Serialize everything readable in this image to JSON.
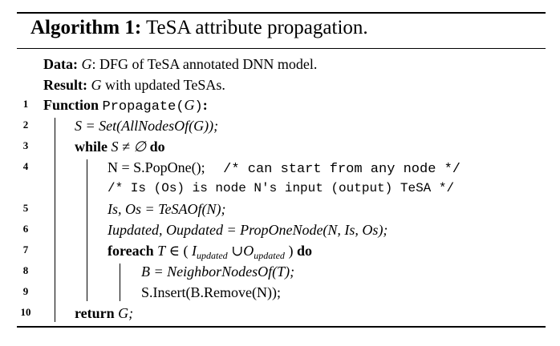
{
  "algorithm": {
    "label": "Algorithm 1:",
    "title": "TeSA attribute propagation."
  },
  "header": {
    "data_kw": "Data:",
    "data_text": ": DFG of TeSA annotated DNN model.",
    "result_kw": "Result:",
    "result_text": " with updated TeSAs."
  },
  "line_numbers": [
    "1",
    "2",
    "3",
    "4",
    "5",
    "6",
    "7",
    "8",
    "9",
    "10"
  ],
  "lines": {
    "l1": {
      "kw": "Function",
      "fn": "Propagate",
      "end": ":"
    },
    "l2": {
      "text": "S = Set(AllNodesOf(G));"
    },
    "l3": {
      "kw": "while",
      "cond": "S ≠ ∅",
      "kw2": "do"
    },
    "l4": {
      "stmt": "N = S.PopOne();",
      "comment": "/* can start from any node */"
    },
    "l4b": {
      "comment": "/* Is (Os) is node N's input (output) TeSA */"
    },
    "l5": {
      "text": "Is, Os = TeSAOf(N);"
    },
    "l6": {
      "text": "Iupdated, Oupdated = PropOneNode(N, Is, Os);"
    },
    "l7": {
      "kw": "foreach",
      "kw2": "do"
    },
    "l8": {
      "text": "B = NeighborNodesOf(T);"
    },
    "l9": {
      "text": "S.Insert(B.Remove(N));"
    },
    "l10": {
      "kw": "return",
      "var": "G;"
    }
  },
  "symbols": {
    "G": "G",
    "S": "S",
    "N": "N",
    "T": "T",
    "B": "B",
    "I": "I",
    "O": "O",
    "s": "s",
    "updated": "updated"
  }
}
